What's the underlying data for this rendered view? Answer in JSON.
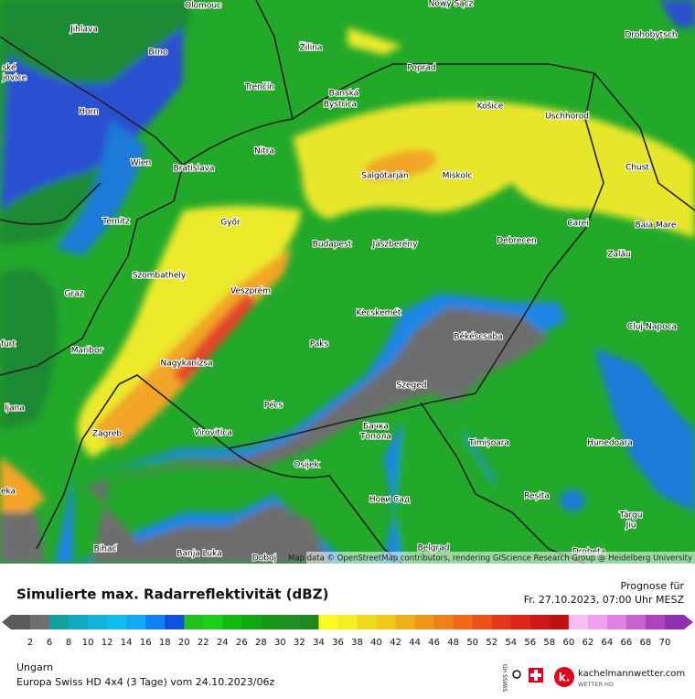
{
  "map": {
    "cities": [
      "Olomouc",
      "Nowy Sącz",
      "Jihlava",
      "Brno",
      "Žilina",
      "Drohobytsch",
      "Poprad",
      "Trenčín",
      "Banská",
      "Bystrica",
      "Košice",
      "Uschhorod",
      "Horn",
      "Nitra",
      "Wien",
      "Bratislava",
      "Salgótarján",
      "Miskolc",
      "Chust",
      "Ternitz",
      "Győr",
      "Carei",
      "Baia Mare",
      "Budapest",
      "Jászberény",
      "Debrecen",
      "Szombathely",
      "Zalău",
      "Graz",
      "Veszprém",
      "Cluj-Napoca",
      "Kecskemét",
      "Békéscsaba",
      "Maribor",
      "Paks",
      "Nagykanizsa",
      "Szeged",
      "Pécs",
      "Zagreb",
      "Бачка",
      "Топола",
      "Virovitica",
      "Timișoara",
      "Hunedoara",
      "Osijek",
      "Нови Сад",
      "Reșita",
      "Târgu",
      "Jiu",
      "Belgrad",
      "Bihać",
      "Banja Luka",
      "Doboj",
      "Drobeta",
      "ské",
      "jovice",
      "furt",
      "ljana",
      "eka"
    ],
    "attribution": "Map data © OpenStreetMap contributors, rendering GIScience Research Group @ Heidelberg University"
  },
  "footer": {
    "title": "Simulierte max. Radarreflektivität (dBZ)",
    "forecast_label": "Prognose für",
    "forecast_time": "Fr. 27.10.2023, 07:00 Uhr MESZ",
    "legend_ticks": [
      2,
      6,
      8,
      10,
      12,
      14,
      16,
      18,
      20,
      22,
      24,
      26,
      28,
      30,
      32,
      34,
      36,
      38,
      40,
      42,
      44,
      46,
      48,
      50,
      52,
      54,
      56,
      58,
      60,
      62,
      64,
      66,
      68,
      70
    ],
    "region": "Ungarn",
    "model": "Europa Swiss HD 4x4 (3 Tage) vom 24.10.2023/06z",
    "swiss_logo": "SWISS HD",
    "brand": "kachelmannwetter.com",
    "brand_sub": "WETTER HD"
  }
}
